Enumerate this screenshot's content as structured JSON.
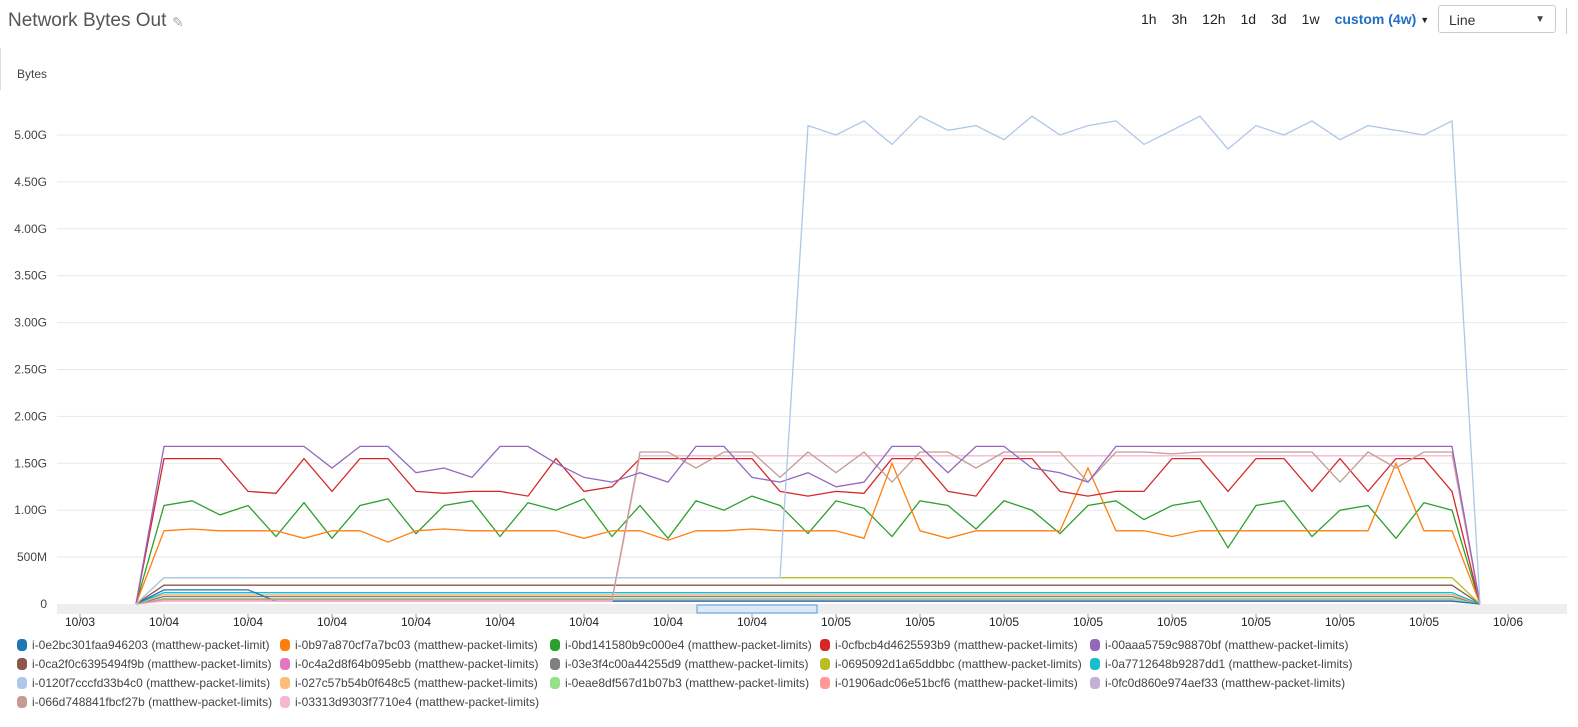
{
  "header": {
    "title": "Network Bytes Out",
    "edit_icon": "pencil-icon",
    "periods": [
      "1h",
      "3h",
      "12h",
      "1d",
      "3d",
      "1w"
    ],
    "custom_period": "custom (4w)",
    "chart_type": "Line"
  },
  "chart_data": {
    "type": "line",
    "ylabel": "Bytes",
    "ylim": [
      0,
      5.5
    ],
    "yticks": [
      {
        "v": 0,
        "label": "0"
      },
      {
        "v": 0.5,
        "label": "500M"
      },
      {
        "v": 1,
        "label": "1.00G"
      },
      {
        "v": 1.5,
        "label": "1.50G"
      },
      {
        "v": 2,
        "label": "2.00G"
      },
      {
        "v": 2.5,
        "label": "2.50G"
      },
      {
        "v": 3,
        "label": "3.00G"
      },
      {
        "v": 3.5,
        "label": "3.50G"
      },
      {
        "v": 4,
        "label": "4.00G"
      },
      {
        "v": 4.5,
        "label": "4.50G"
      },
      {
        "v": 5,
        "label": "5.00G"
      }
    ],
    "xticks": [
      "10/03",
      "10/04",
      "10/04",
      "10/04",
      "10/04",
      "10/04",
      "10/04",
      "10/04",
      "10/04",
      "10/05",
      "10/05",
      "10/05",
      "10/05",
      "10/05",
      "10/05",
      "10/05",
      "10/05",
      "10/06"
    ],
    "grid": true,
    "legend_position": "bottom",
    "x_start": "10/03 23:00",
    "x_step_hours": 1,
    "series": [
      {
        "name": "i-0e2bc301faa946203 (matthew-packet-limit)",
        "color": "#1f77b4",
        "values": [
          0,
          0.15,
          0.15,
          0.15,
          0.15,
          0.03,
          0.03,
          0.03,
          0.03,
          0.03,
          0.03,
          0.03,
          0.03,
          0.03,
          0.03,
          0.03,
          0.03,
          0.03,
          0.03,
          0.03,
          0.03,
          0.03,
          0.03,
          0.03,
          0.03,
          0.03,
          0.03,
          0.03,
          0.03,
          0.03,
          0.03,
          0.03,
          0.03,
          0.03,
          0.03,
          0.03,
          0.03,
          0.03,
          0.03,
          0.03,
          0.03,
          0.03,
          0.03,
          0.03,
          0.03,
          0.03,
          0.03,
          0.03,
          0
        ]
      },
      {
        "name": "i-0b97a870cf7a7bc03 (matthew-packet-limits)",
        "color": "#ff7f0e",
        "values": [
          0,
          0.78,
          0.8,
          0.78,
          0.78,
          0.78,
          0.7,
          0.78,
          0.78,
          0.66,
          0.78,
          0.8,
          0.78,
          0.78,
          0.78,
          0.78,
          0.7,
          0.78,
          0.78,
          0.68,
          0.78,
          0.78,
          0.8,
          0.78,
          0.78,
          0.78,
          0.7,
          1.5,
          0.78,
          0.7,
          0.78,
          0.78,
          0.78,
          0.78,
          1.45,
          0.78,
          0.78,
          0.72,
          0.78,
          0.78,
          0.78,
          0.78,
          0.78,
          0.78,
          0.78,
          1.5,
          0.78,
          0.78,
          0
        ]
      },
      {
        "name": "i-0bd141580b9c000e4 (matthew-packet-limits)",
        "color": "#2ca02c",
        "values": [
          0,
          1.05,
          1.1,
          0.95,
          1.05,
          0.72,
          1.08,
          0.7,
          1.05,
          1.12,
          0.75,
          1.05,
          1.1,
          0.72,
          1.08,
          1.0,
          1.12,
          0.72,
          1.05,
          0.7,
          1.1,
          1.0,
          1.15,
          1.05,
          0.75,
          1.1,
          1.02,
          0.72,
          1.1,
          1.05,
          0.8,
          1.1,
          1.0,
          0.75,
          1.05,
          1.1,
          0.9,
          1.05,
          1.1,
          0.6,
          1.05,
          1.1,
          0.72,
          1.0,
          1.05,
          0.7,
          1.08,
          1.0,
          0
        ]
      },
      {
        "name": "i-0cfbcb4d4625593b9 (matthew-packet-limits)",
        "color": "#d62728",
        "values": [
          0,
          1.55,
          1.55,
          1.55,
          1.2,
          1.18,
          1.55,
          1.2,
          1.55,
          1.55,
          1.2,
          1.18,
          1.2,
          1.2,
          1.15,
          1.55,
          1.2,
          1.25,
          1.55,
          1.55,
          1.55,
          1.55,
          1.55,
          1.2,
          1.15,
          1.2,
          1.18,
          1.55,
          1.55,
          1.2,
          1.15,
          1.55,
          1.55,
          1.2,
          1.15,
          1.2,
          1.2,
          1.55,
          1.55,
          1.2,
          1.55,
          1.55,
          1.2,
          1.55,
          1.2,
          1.55,
          1.55,
          1.2,
          0
        ]
      },
      {
        "name": "i-00aaa5759c98870bf (matthew-packet-limits)",
        "color": "#9467bd",
        "values": [
          0,
          1.68,
          1.68,
          1.68,
          1.68,
          1.68,
          1.68,
          1.45,
          1.68,
          1.68,
          1.4,
          1.45,
          1.35,
          1.68,
          1.68,
          1.5,
          1.35,
          1.3,
          1.4,
          1.3,
          1.68,
          1.68,
          1.35,
          1.3,
          1.4,
          1.25,
          1.3,
          1.68,
          1.68,
          1.4,
          1.68,
          1.68,
          1.45,
          1.4,
          1.3,
          1.68,
          1.68,
          1.68,
          1.68,
          1.68,
          1.68,
          1.68,
          1.68,
          1.68,
          1.68,
          1.68,
          1.68,
          1.68,
          0
        ]
      },
      {
        "name": "i-0ca2f0c6395494f9b (matthew-packet-limits)",
        "color": "#8c564b",
        "values": [
          0,
          0.2,
          0.2,
          0.2,
          0.2,
          0.2,
          0.2,
          0.2,
          0.2,
          0.2,
          0.2,
          0.2,
          0.2,
          0.2,
          0.2,
          0.2,
          0.2,
          0.2,
          0.2,
          0.2,
          0.2,
          0.2,
          0.2,
          0.2,
          0.2,
          0.2,
          0.2,
          0.2,
          0.2,
          0.2,
          0.2,
          0.2,
          0.2,
          0.2,
          0.2,
          0.2,
          0.2,
          0.2,
          0.2,
          0.2,
          0.2,
          0.2,
          0.2,
          0.2,
          0.2,
          0.2,
          0.2,
          0.2,
          0
        ]
      },
      {
        "name": "i-0c4a2d8f64b095ebb (matthew-packet-limits)",
        "color": "#e377c2",
        "values": [
          0,
          0.1,
          0.1,
          0.1,
          0.1,
          0.1,
          0.1,
          0.1,
          0.1,
          0.1,
          0.1,
          0.1,
          0.1,
          0.1,
          0.1,
          0.1,
          0.1,
          0.1,
          0.1,
          0.1,
          0.1,
          0.1,
          0.1,
          0.1,
          0.1,
          0.1,
          0.1,
          0.1,
          0.1,
          0.1,
          0.1,
          0.1,
          0.1,
          0.1,
          0.1,
          0.1,
          0.1,
          0.1,
          0.1,
          0.1,
          0.1,
          0.1,
          0.1,
          0.1,
          0.1,
          0.1,
          0.1,
          0.1,
          0
        ]
      },
      {
        "name": "i-03e3f4c00a44255d9 (matthew-packet-limits)",
        "color": "#7f7f7f",
        "values": [
          0,
          0.08,
          0.08,
          0.08,
          0.08,
          0.08,
          0.08,
          0.08,
          0.08,
          0.08,
          0.08,
          0.08,
          0.08,
          0.08,
          0.08,
          0.08,
          0.08,
          0.08,
          0.08,
          0.08,
          0.08,
          0.08,
          0.08,
          0.08,
          0.08,
          0.08,
          0.08,
          0.08,
          0.08,
          0.08,
          0.08,
          0.08,
          0.08,
          0.08,
          0.08,
          0.08,
          0.08,
          0.08,
          0.08,
          0.08,
          0.08,
          0.08,
          0.08,
          0.08,
          0.08,
          0.08,
          0.08,
          0.08,
          0
        ]
      },
      {
        "name": "i-0695092d1a65ddbbc (matthew-packet-limits)",
        "color": "#bcbd22",
        "values": [
          0,
          0.28,
          0.28,
          0.28,
          0.28,
          0.28,
          0.28,
          0.28,
          0.28,
          0.28,
          0.28,
          0.28,
          0.28,
          0.28,
          0.28,
          0.28,
          0.28,
          0.28,
          0.28,
          0.28,
          0.28,
          0.28,
          0.28,
          0.28,
          0.28,
          0.28,
          0.28,
          0.28,
          0.28,
          0.28,
          0.28,
          0.28,
          0.28,
          0.28,
          0.28,
          0.28,
          0.28,
          0.28,
          0.28,
          0.28,
          0.28,
          0.28,
          0.28,
          0.28,
          0.28,
          0.28,
          0.28,
          0.28,
          0
        ]
      },
      {
        "name": "i-0a7712648b9287dd1 (matthew-packet-limits)",
        "color": "#17becf",
        "values": [
          0,
          0.12,
          0.12,
          0.12,
          0.12,
          0.12,
          0.12,
          0.12,
          0.12,
          0.12,
          0.12,
          0.12,
          0.12,
          0.12,
          0.12,
          0.12,
          0.12,
          0.12,
          0.12,
          0.12,
          0.12,
          0.12,
          0.12,
          0.12,
          0.12,
          0.12,
          0.12,
          0.12,
          0.12,
          0.12,
          0.12,
          0.12,
          0.12,
          0.12,
          0.12,
          0.12,
          0.12,
          0.12,
          0.12,
          0.12,
          0.12,
          0.12,
          0.12,
          0.12,
          0.12,
          0.12,
          0.12,
          0.12,
          0
        ]
      },
      {
        "name": "i-0120f7cccfd33b4c0 (matthew-packet-limits)",
        "color": "#aec7e8",
        "values": [
          0,
          0.28,
          0.28,
          0.28,
          0.28,
          0.28,
          0.28,
          0.28,
          0.28,
          0.28,
          0.28,
          0.28,
          0.28,
          0.28,
          0.28,
          0.28,
          0.28,
          0.28,
          0.28,
          0.28,
          0.28,
          0.28,
          0.28,
          0.28,
          5.1,
          5.0,
          5.15,
          4.9,
          5.2,
          5.05,
          5.1,
          4.95,
          5.2,
          5.0,
          5.1,
          5.15,
          4.9,
          5.05,
          5.2,
          4.85,
          5.1,
          5.0,
          5.15,
          4.95,
          5.1,
          5.05,
          5.0,
          5.15,
          0
        ]
      },
      {
        "name": "i-027c57b54b0f648c5 (matthew-packet-limits)",
        "color": "#ffbb78",
        "values": [
          0,
          0.1,
          0.1,
          0.1,
          0.1,
          0.1,
          0.1,
          0.1,
          0.1,
          0.1,
          0.1,
          0.1,
          0.1,
          0.1,
          0.1,
          0.1,
          0.1,
          0.1,
          0.1,
          0.1,
          0.1,
          0.1,
          0.1,
          0.1,
          0.1,
          0.1,
          0.1,
          0.1,
          0.1,
          0.1,
          0.1,
          0.1,
          0.1,
          0.1,
          0.1,
          0.1,
          0.1,
          0.1,
          0.1,
          0.1,
          0.1,
          0.1,
          0.1,
          0.1,
          0.1,
          0.1,
          0.1,
          0.1,
          0
        ]
      },
      {
        "name": "i-0eae8df567d1b07b3 (matthew-packet-limits)",
        "color": "#98df8a",
        "values": [
          0,
          0.06,
          0.06,
          0.06,
          0.06,
          0.06,
          0.06,
          0.06,
          0.06,
          0.06,
          0.06,
          0.06,
          0.06,
          0.06,
          0.06,
          0.06,
          0.06,
          0.06,
          0.06,
          0.06,
          0.06,
          0.06,
          0.06,
          0.06,
          0.06,
          0.06,
          0.06,
          0.06,
          0.06,
          0.06,
          0.06,
          0.06,
          0.06,
          0.06,
          0.06,
          0.06,
          0.06,
          0.06,
          0.06,
          0.06,
          0.06,
          0.06,
          0.06,
          0.06,
          0.06,
          0.06,
          0.06,
          0.06,
          0
        ]
      },
      {
        "name": "i-01906adc06e51bcf6 (matthew-packet-limits)",
        "color": "#ff9896",
        "values": [
          0,
          0.04,
          0.04,
          0.04,
          0.04,
          0.04,
          0.04,
          0.04,
          0.04,
          0.04,
          0.04,
          0.04,
          0.04,
          0.04,
          0.04,
          0.04,
          0.04,
          0.04,
          0.04,
          0.04,
          0.04,
          0.04,
          0.04,
          0.04,
          0.04,
          0.04,
          0.04,
          0.04,
          0.04,
          0.04,
          0.04,
          0.04,
          0.04,
          0.04,
          0.04,
          0.04,
          0.04,
          0.04,
          0.04,
          0.04,
          0.04,
          0.04,
          0.04,
          0.04,
          0.04,
          0.04,
          0.04,
          0.04,
          0
        ]
      },
      {
        "name": "i-0fc0d860e974aef33 (matthew-packet-limits)",
        "color": "#c5b0d5",
        "values": [
          0,
          0.05,
          0.05,
          0.05,
          0.05,
          0.05,
          0.05,
          0.05,
          0.05,
          0.05,
          0.05,
          0.05,
          0.05,
          0.05,
          0.05,
          0.05,
          0.05,
          0.05,
          0.05,
          0.05,
          0.05,
          0.05,
          0.05,
          0.05,
          0.05,
          0.05,
          0.05,
          0.05,
          0.05,
          0.05,
          0.05,
          0.05,
          0.05,
          0.05,
          0.05,
          0.05,
          0.05,
          0.05,
          0.05,
          0.05,
          0.05,
          0.05,
          0.05,
          0.05,
          0.05,
          0.05,
          0.05,
          0.05,
          0
        ]
      },
      {
        "name": "i-066d748841fbcf27b (matthew-packet-limits)",
        "color": "#c49c94",
        "values": [
          0,
          0.05,
          0.05,
          0.05,
          0.05,
          0.05,
          0.05,
          0.05,
          0.05,
          0.05,
          0.05,
          0.05,
          0.05,
          0.05,
          0.05,
          0.05,
          0.05,
          0.05,
          1.62,
          1.62,
          1.45,
          1.62,
          1.62,
          1.35,
          1.62,
          1.4,
          1.62,
          1.3,
          1.62,
          1.62,
          1.45,
          1.62,
          1.62,
          1.62,
          1.3,
          1.62,
          1.62,
          1.6,
          1.62,
          1.62,
          1.62,
          1.62,
          1.62,
          1.3,
          1.62,
          1.45,
          1.62,
          1.62,
          0
        ]
      },
      {
        "name": "i-03313d9303f7710e4 (matthew-packet-limits)",
        "color": "#f7b6d2",
        "values": [
          0,
          0.03,
          0.03,
          0.03,
          0.03,
          0.03,
          0.03,
          0.03,
          0.03,
          0.03,
          0.03,
          0.03,
          0.03,
          0.03,
          0.03,
          0.03,
          0.03,
          0.03,
          1.58,
          1.58,
          1.58,
          1.58,
          1.58,
          1.58,
          1.58,
          1.58,
          1.58,
          1.58,
          1.58,
          1.58,
          1.58,
          1.58,
          1.58,
          1.58,
          1.58,
          1.58,
          1.58,
          1.58,
          1.58,
          1.58,
          1.58,
          1.58,
          1.58,
          1.58,
          1.58,
          1.58,
          1.58,
          1.58,
          0
        ]
      }
    ]
  }
}
